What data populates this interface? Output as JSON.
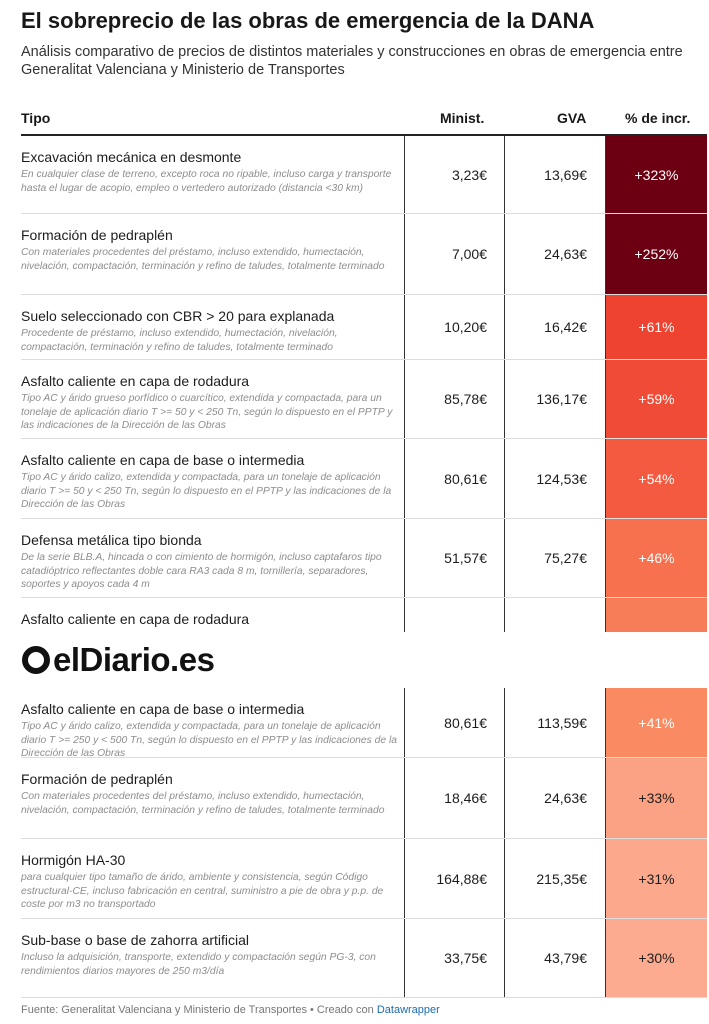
{
  "title": "El sobreprecio de las obras de emergencia de la DANA",
  "subtitle": "Análisis comparativo de precios de distintos materiales y construcciones en obras de emergencia entre Generalitat Valenciana y Ministerio de Transportes",
  "headers": {
    "tipo": "Tipo",
    "minist": "Minist.",
    "gva": "GVA",
    "pct": "% de incr."
  },
  "rows_top": [
    {
      "name": "Excavación mecánica en desmonte",
      "desc": "En cualquier clase de terreno, excepto roca no ripable, incluso carga y transporte hasta el lugar de acopio, empleo o vertedero autorizado (distancia <30 km)",
      "minist": "3,23€",
      "gva": "13,69€",
      "pct": "+323%",
      "color": "#6c0012"
    },
    {
      "name": "Formación de pedraplén",
      "desc": "Con materiales procedentes del préstamo, incluso extendido, humectación, nivelación, compactación, terminación y refino de taludes, totalmente terminado",
      "minist": "7,00€",
      "gva": "24,63€",
      "pct": "+252%",
      "color": "#6c0012"
    },
    {
      "name": "Suelo seleccionado con CBR > 20 para explanada",
      "desc": "Procedente de préstamo, incluso extendido, humectación, nivelación, compactación, terminación y refino de taludes, totalmente terminado",
      "minist": "10,20€",
      "gva": "16,42€",
      "pct": "+61%",
      "color": "#ee4330"
    },
    {
      "name": "Asfalto caliente en capa de rodadura",
      "desc": "Tipo AC y árido grueso porfídico o cuarcítico, extendida y compactada, para un tonelaje de aplicación diario T >= 50 y < 250 Tn, según lo dispuesto en el PPTP y las indicaciones de la Dirección de las Obras",
      "minist": "85,78€",
      "gva": "136,17€",
      "pct": "+59%",
      "color": "#f04b36"
    },
    {
      "name": "Asfalto caliente en capa de base o intermedia",
      "desc": "Tipo AC y árido calizo, extendida y compactada, para un tonelaje de aplicación diario T >= 50 y < 250 Tn, según lo dispuesto en el PPTP y las indicaciones de la Dirección de las Obras",
      "minist": "80,61€",
      "gva": "124,53€",
      "pct": "+54%",
      "color": "#f35a40"
    },
    {
      "name": "Defensa metálica tipo bionda",
      "desc": "De la serie BLB.A, hincada o con cimiento de hormigón, incluso captafaros tipo catadióptrico reflectantes doble cara RA3 cada 8 m, tornillería, separadores, soportes y apoyos cada 4 m",
      "minist": "51,57€",
      "gva": "75,27€",
      "pct": "+46%",
      "color": "#f7714f"
    },
    {
      "name": "Asfalto caliente en capa de rodadura",
      "desc": "",
      "minist": "",
      "gva": "",
      "pct": "",
      "color": "#f77d58"
    }
  ],
  "rows_bottom": [
    {
      "name": "Asfalto caliente en capa de base o intermedia",
      "desc": "Tipo AC y árido calizo, extendida y compactada, para un tonelaje de aplicación diario T >= 250 y < 500 Tn, según lo dispuesto en el PPTP y las indicaciones de la Dirección de las Obras",
      "minist": "80,61€",
      "gva": "113,59€",
      "pct": "+41%",
      "color": "#f98a62"
    },
    {
      "name": "Formación de pedraplén",
      "desc": "Con materiales procedentes del préstamo, incluso extendido, humectación, nivelación, compactación, terminación y refino de taludes, totalmente terminado",
      "minist": "18,46€",
      "gva": "24,63€",
      "pct": "+33%",
      "color": "#fba284"
    },
    {
      "name": "Hormigón HA-30",
      "desc": "para cualquier tipo tamaño de árido, ambiente y consistencia, según Código estructural-CE, incluso fabricación en central, suministro a pie de obra y p.p. de coste por m3 no transportado",
      "minist": "164,88€",
      "gva": "215,35€",
      "pct": "+31%",
      "color": "#fca88c"
    },
    {
      "name": "Sub-base o base de zahorra artificial",
      "desc": "Incluso la adquisición, transporte, extendido y compactación según PG-3, con rendimientos diarios mayores de 250 m3/día",
      "minist": "33,75€",
      "gva": "43,79€",
      "pct": "+30%",
      "color": "#fcab90"
    }
  ],
  "logo": {
    "text": "elDiario.es"
  },
  "footer": {
    "text": "Fuente: Generalitat Valenciana y Ministerio de Transportes • Creado con ",
    "link": "Datawrapper"
  }
}
